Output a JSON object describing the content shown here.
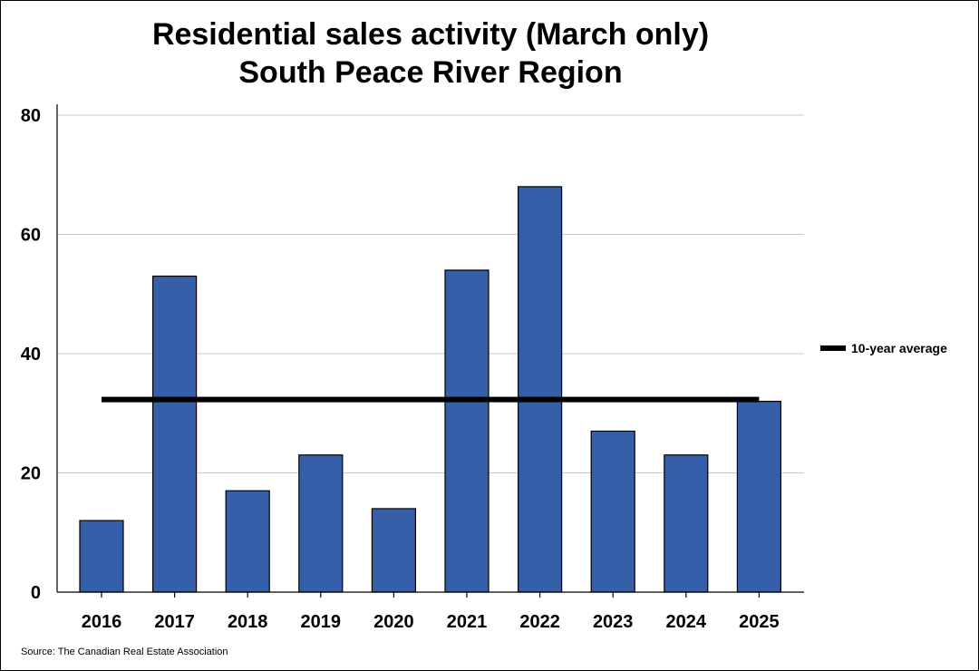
{
  "chart_data": {
    "type": "bar",
    "title_lines": [
      "Residential sales activity (March only)",
      "South Peace River Region"
    ],
    "xlabel": "",
    "ylabel": "",
    "categories": [
      "2016",
      "2017",
      "2018",
      "2019",
      "2020",
      "2021",
      "2022",
      "2023",
      "2024",
      "2025"
    ],
    "values": [
      12,
      53,
      17,
      23,
      14,
      54,
      68,
      27,
      23,
      32
    ],
    "ylim": [
      0,
      80
    ],
    "yticks": [
      0,
      20,
      40,
      60,
      80
    ],
    "grid": true,
    "bar_color": "#355FA8",
    "average_line": {
      "label": "10-year average",
      "value": 32.3,
      "color": "#000000"
    },
    "legend_placement": "right"
  },
  "source": "Source: The Canadian Real Estate Association"
}
